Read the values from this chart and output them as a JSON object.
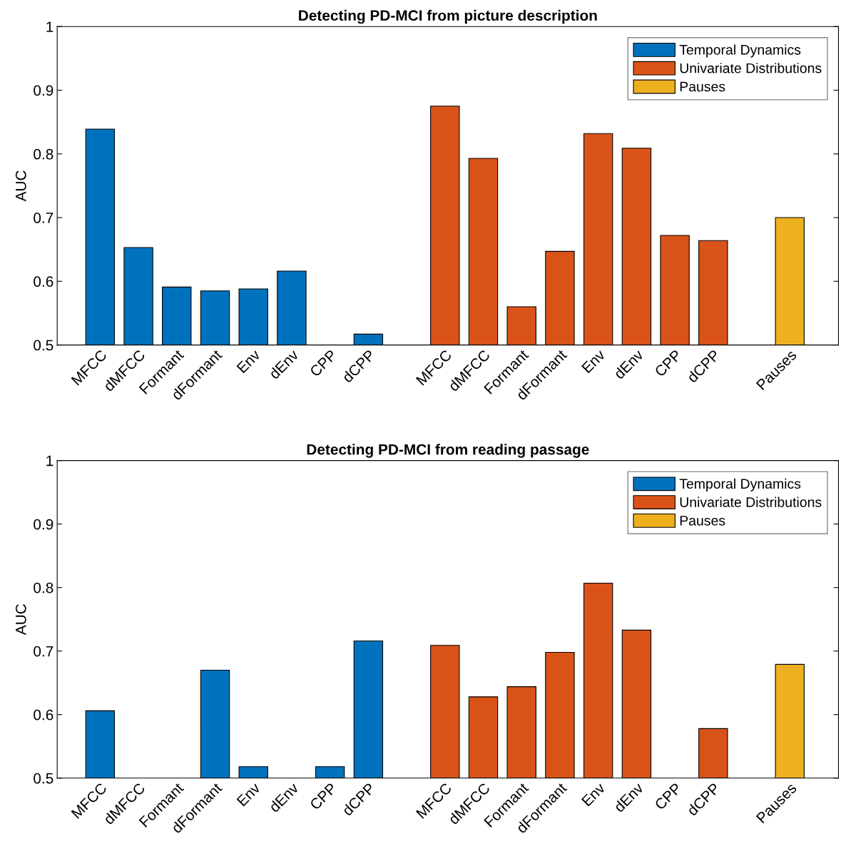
{
  "chart_data": [
    {
      "type": "bar",
      "title": "Detecting PD-MCI from picture description",
      "ylabel": "AUC",
      "categories": [
        "MFCC",
        "dMFCC",
        "Formant",
        "dFormant",
        "Env",
        "dEnv",
        "CPP",
        "dCPP",
        null,
        "MFCC",
        "dMFCC",
        "Formant",
        "dFormant",
        "Env",
        "dEnv",
        "CPP",
        "dCPP",
        null,
        "Pauses"
      ],
      "series": [
        {
          "name": "Temporal Dynamics",
          "color": "#0072bd",
          "values": [
            0.839,
            0.653,
            0.591,
            0.585,
            0.588,
            0.616,
            null,
            0.517,
            null,
            null,
            null,
            null,
            null,
            null,
            null,
            null,
            null,
            null,
            null
          ]
        },
        {
          "name": "Univariate Distributions",
          "color": "#d95319",
          "values": [
            null,
            null,
            null,
            null,
            null,
            null,
            null,
            null,
            null,
            0.875,
            0.793,
            0.56,
            0.647,
            0.832,
            0.809,
            0.672,
            0.664,
            null,
            null
          ]
        },
        {
          "name": "Pauses",
          "color": "#edb120",
          "values": [
            null,
            null,
            null,
            null,
            null,
            null,
            null,
            null,
            null,
            null,
            null,
            null,
            null,
            null,
            null,
            null,
            null,
            null,
            0.7
          ]
        }
      ],
      "ylim": [
        0.5,
        1
      ],
      "yticks": [
        0.5,
        0.6,
        0.7,
        0.8,
        0.9,
        1
      ],
      "legend": "top right"
    },
    {
      "type": "bar",
      "title": "Detecting PD-MCI from reading passage",
      "ylabel": "AUC",
      "categories": [
        "MFCC",
        "dMFCC",
        "Formant",
        "dFormant",
        "Env",
        "dEnv",
        "CPP",
        "dCPP",
        null,
        "MFCC",
        "dMFCC",
        "Formant",
        "dFormant",
        "Env",
        "dEnv",
        "CPP",
        "dCPP",
        null,
        "Pauses"
      ],
      "series": [
        {
          "name": "Temporal Dynamics",
          "color": "#0072bd",
          "values": [
            0.606,
            null,
            null,
            0.67,
            0.518,
            null,
            0.518,
            0.716,
            null,
            null,
            null,
            null,
            null,
            null,
            null,
            null,
            null,
            null,
            null
          ]
        },
        {
          "name": "Univariate Distributions",
          "color": "#d95319",
          "values": [
            null,
            null,
            null,
            null,
            null,
            null,
            null,
            null,
            null,
            0.709,
            0.628,
            0.644,
            0.698,
            0.807,
            0.733,
            null,
            0.578,
            null,
            null
          ]
        },
        {
          "name": "Pauses",
          "color": "#edb120",
          "values": [
            null,
            null,
            null,
            null,
            null,
            null,
            null,
            null,
            null,
            null,
            null,
            null,
            null,
            null,
            null,
            null,
            null,
            null,
            0.679
          ]
        }
      ],
      "ylim": [
        0.5,
        1
      ],
      "yticks": [
        0.5,
        0.6,
        0.7,
        0.8,
        0.9,
        1
      ],
      "legend": "top right"
    }
  ]
}
